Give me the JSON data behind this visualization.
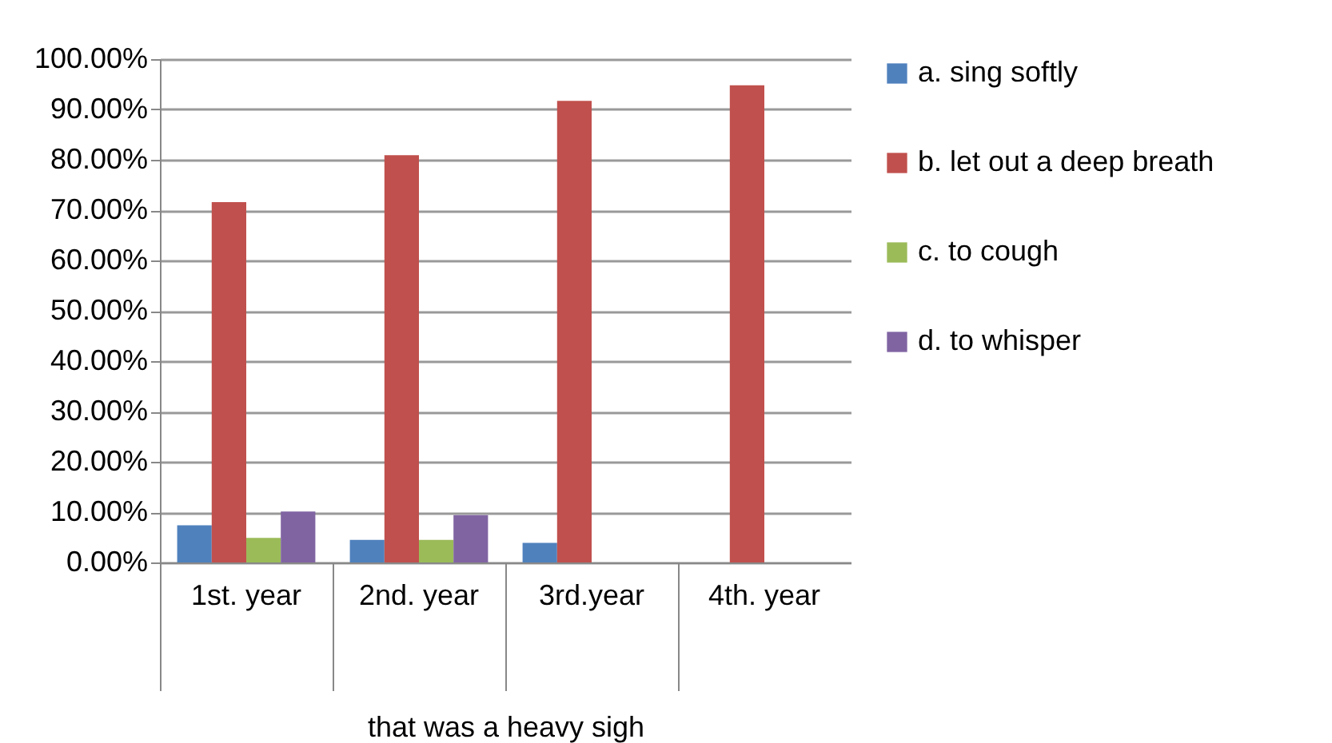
{
  "chart_data": {
    "type": "bar",
    "xlabel": "that was a heavy sigh",
    "categories": [
      "1st. year",
      "2nd. year",
      "3rd.year",
      "4th. year"
    ],
    "series": [
      {
        "name": "a. sing softly",
        "color": "#4f81bd",
        "values": [
          7.4,
          4.5,
          3.9,
          null
        ]
      },
      {
        "name": "b. let out a deep breath",
        "color": "#c0504d",
        "values": [
          71.6,
          80.9,
          91.7,
          94.8
        ]
      },
      {
        "name": "c. to cough",
        "color": "#9bbb59",
        "values": [
          4.9,
          4.5,
          null,
          null
        ]
      },
      {
        "name": "d. to whisper",
        "color": "#8064a2",
        "values": [
          10.1,
          9.4,
          null,
          null
        ]
      }
    ],
    "ylim": [
      0,
      100
    ],
    "yticks": [
      {
        "value": 0,
        "label": "0.00%"
      },
      {
        "value": 10,
        "label": "10.00%"
      },
      {
        "value": 20,
        "label": "20.00%"
      },
      {
        "value": 30,
        "label": "30.00%"
      },
      {
        "value": 40,
        "label": "40.00%"
      },
      {
        "value": 50,
        "label": "50.00%"
      },
      {
        "value": 60,
        "label": "60.00%"
      },
      {
        "value": 70,
        "label": "70.00%"
      },
      {
        "value": 80,
        "label": "80.00%"
      },
      {
        "value": 90,
        "label": "90.00%"
      },
      {
        "value": 100,
        "label": "100.00%"
      }
    ],
    "grid": "y",
    "legend": "right"
  }
}
